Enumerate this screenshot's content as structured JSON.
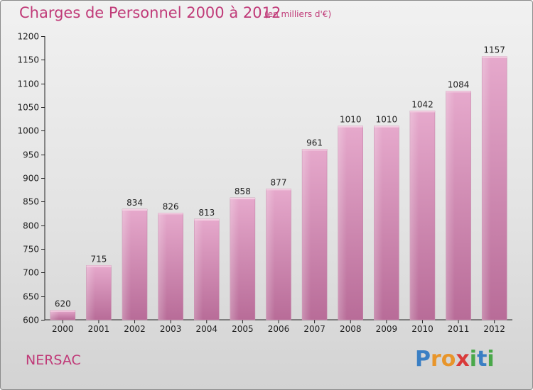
{
  "title": "Charges de Personnel 2000 à 2012",
  "subtitle": "(en milliers d'€)",
  "commune": "NERSAC",
  "logo": {
    "letters": [
      {
        "char": "P",
        "color": "#3a7fc4"
      },
      {
        "char": "r",
        "color": "#e8952a"
      },
      {
        "char": "o",
        "color": "#e8952a"
      },
      {
        "char": "x",
        "color": "#d93a3a"
      },
      {
        "char": "i",
        "color": "#4aa84a"
      },
      {
        "char": "t",
        "color": "#3a7fc4"
      },
      {
        "char": "i",
        "color": "#4aa84a"
      }
    ]
  },
  "chart_data": {
    "type": "bar",
    "categories": [
      "2000",
      "2001",
      "2002",
      "2003",
      "2004",
      "2005",
      "2006",
      "2007",
      "2008",
      "2009",
      "2010",
      "2011",
      "2012"
    ],
    "values": [
      620,
      715,
      834,
      826,
      813,
      858,
      877,
      961,
      1010,
      1010,
      1042,
      1084,
      1157
    ],
    "data_labels": [
      "620",
      "715",
      "834",
      "826",
      "813",
      "858",
      "877",
      "961",
      "1010",
      "1010",
      "1042",
      "1084",
      "1157"
    ],
    "ylim": [
      600,
      1200
    ],
    "yticks": [
      "600",
      "650",
      "700",
      "750",
      "800",
      "850",
      "900",
      "950",
      "1000",
      "1050",
      "1100",
      "1150",
      "1200"
    ],
    "bar_color": "#d78fb8",
    "grid": false,
    "legend": "none"
  }
}
